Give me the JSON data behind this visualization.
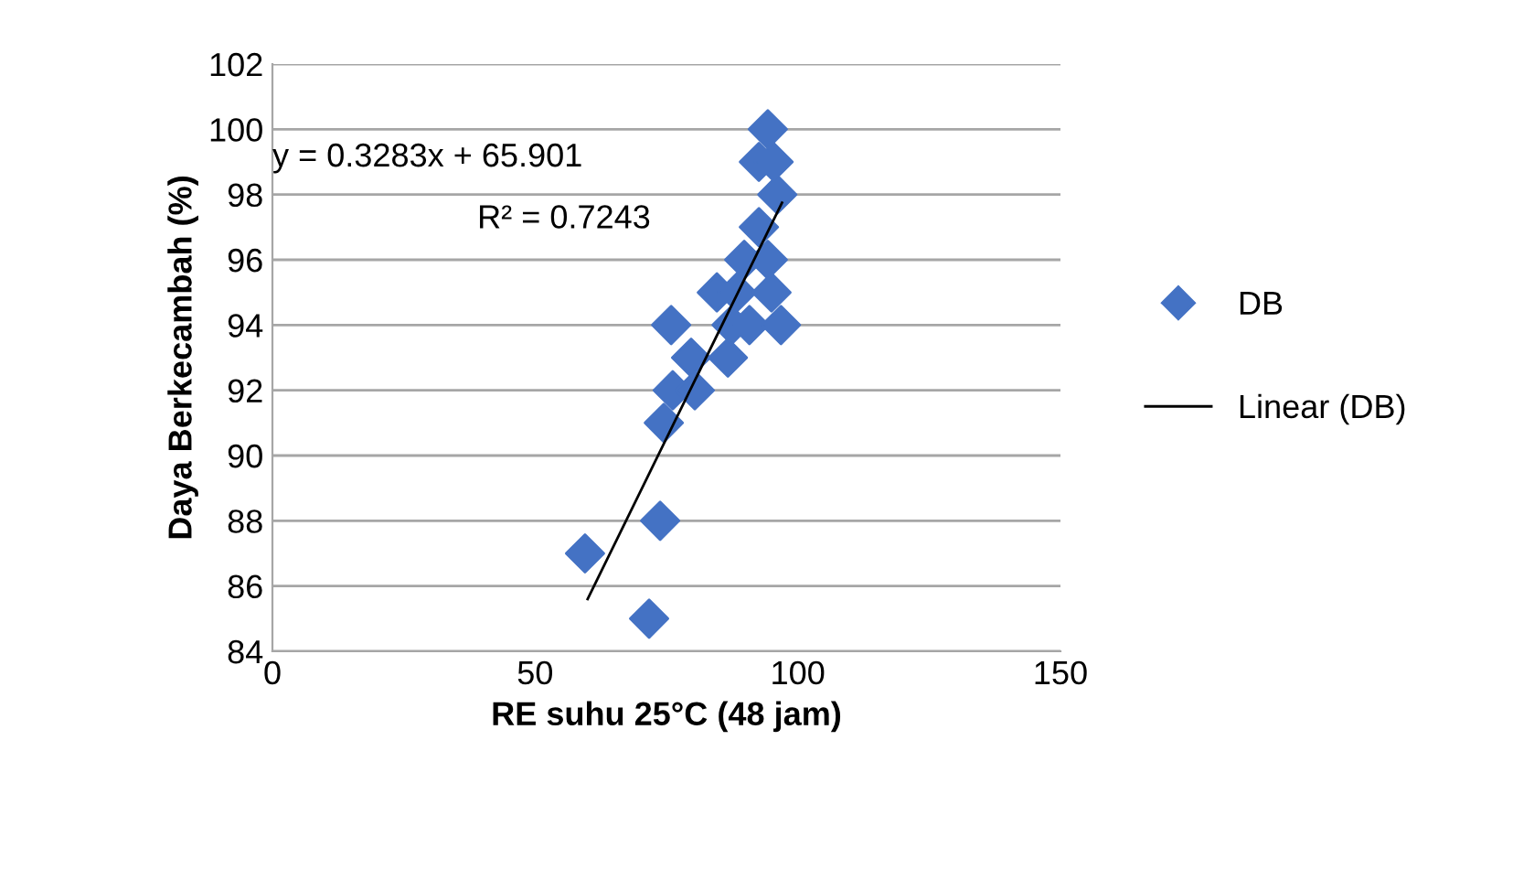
{
  "chart_data": {
    "type": "scatter",
    "xlabel": "RE suhu 25°C (48 jam)",
    "ylabel": "Daya Berkecambah (%)",
    "xlim": [
      0,
      150
    ],
    "xticks": [
      0,
      50,
      100,
      150
    ],
    "ylim": [
      84,
      102
    ],
    "yticks": [
      84,
      86,
      88,
      90,
      92,
      94,
      96,
      98,
      100,
      102
    ],
    "grid": "y",
    "legend": "right",
    "annotations": [
      "y = 0.3283x + 65.901",
      "R² = 0.7243"
    ],
    "series": [
      {
        "name": "DB",
        "marker": "diamond",
        "color": "#4472c4",
        "x": [
          59.5,
          71.7,
          73.8,
          74.5,
          76.2,
          80.4,
          79.7,
          86.7,
          75.9,
          87.4,
          90.8,
          96.8,
          84.6,
          88.4,
          95.0,
          89.8,
          94.3,
          92.6,
          96.1,
          92.6,
          95.4,
          94.3
        ],
        "values": [
          87,
          85,
          88,
          91,
          92,
          92,
          93,
          93,
          94,
          94,
          94,
          94,
          95,
          95,
          95,
          96,
          96,
          97,
          98,
          99,
          99,
          100
        ]
      },
      {
        "name": "Linear (DB)",
        "type": "line",
        "color": "#000000",
        "x": [
          60,
          97
        ],
        "values": [
          85.6,
          97.75
        ]
      }
    ]
  }
}
